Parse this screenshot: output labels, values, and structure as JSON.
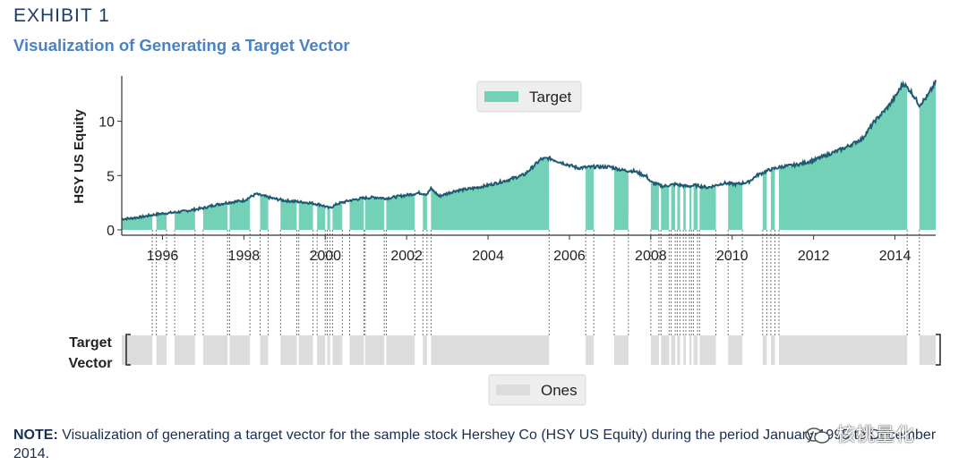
{
  "header": {
    "exhibit": "EXHIBIT 1",
    "subtitle": "Visualization of Generating a Target Vector"
  },
  "note": {
    "label": "NOTE:",
    "text": "Visualization of generating a target vector for the sample stock Hershey Co (HSY US Equity) during the period January 1995 to December 2014."
  },
  "watermark": {
    "text": "核桃量化",
    "icon": "wechat-icon"
  },
  "colors": {
    "target": "#72d1b6",
    "price_line": "#1f5a73",
    "ones": "#dcdcdc",
    "axis": "#333333"
  },
  "chart_data": {
    "type": "area",
    "ylabel": "HSY US Equity",
    "ylim": [
      0,
      14
    ],
    "yticks": [
      0,
      5,
      10
    ],
    "xlim": [
      1995.0,
      2015.0
    ],
    "xticks": [
      1996,
      1998,
      2000,
      2002,
      2004,
      2006,
      2008,
      2010,
      2012,
      2014
    ],
    "legend": {
      "label": "Target",
      "position": "top-center"
    },
    "price": {
      "x": [
        1995.0,
        1995.2,
        1995.5,
        1995.8,
        1996.0,
        1996.3,
        1996.6,
        1997.0,
        1997.3,
        1997.6,
        1998.0,
        1998.3,
        1998.5,
        1998.7,
        1999.0,
        1999.3,
        1999.6,
        1999.9,
        2000.1,
        2000.3,
        2000.6,
        2000.9,
        2001.2,
        2001.5,
        2002.0,
        2002.3,
        2002.5,
        2002.6,
        2002.8,
        2003.2,
        2003.6,
        2004.0,
        2004.5,
        2004.9,
        2005.1,
        2005.3,
        2005.5,
        2005.8,
        2006.2,
        2006.6,
        2007.0,
        2007.3,
        2007.6,
        2007.9,
        2008.0,
        2008.3,
        2008.6,
        2008.9,
        2009.1,
        2009.4,
        2009.8,
        2010.1,
        2010.4,
        2010.6,
        2010.9,
        2011.2,
        2011.6,
        2012.0,
        2012.4,
        2012.8,
        2013.2,
        2013.5,
        2013.8,
        2014.0,
        2014.2,
        2014.4,
        2014.6,
        2014.8,
        2015.0
      ],
      "y": [
        1.0,
        1.05,
        1.2,
        1.4,
        1.5,
        1.6,
        1.75,
        2.0,
        2.3,
        2.5,
        2.7,
        3.3,
        3.1,
        2.9,
        2.7,
        2.6,
        2.5,
        2.3,
        2.0,
        2.4,
        2.7,
        2.9,
        3.0,
        2.9,
        3.2,
        3.4,
        3.3,
        3.8,
        3.1,
        3.6,
        3.8,
        4.1,
        4.6,
        5.1,
        5.8,
        6.5,
        6.6,
        6.2,
        5.7,
        5.8,
        5.8,
        5.5,
        5.4,
        4.9,
        4.4,
        4.0,
        4.2,
        4.0,
        4.1,
        3.9,
        4.3,
        4.2,
        4.4,
        5.0,
        5.5,
        5.8,
        6.0,
        6.4,
        7.0,
        7.6,
        8.4,
        10.0,
        11.2,
        12.2,
        13.5,
        12.7,
        11.5,
        12.3,
        13.6
      ]
    },
    "target_periods": [
      [
        1995.0,
        1995.75
      ],
      [
        1995.85,
        1996.1
      ],
      [
        1996.3,
        1996.8
      ],
      [
        1997.0,
        1997.6
      ],
      [
        1997.65,
        1998.15
      ],
      [
        1998.4,
        1998.6
      ],
      [
        1998.9,
        1999.3
      ],
      [
        1999.35,
        1999.7
      ],
      [
        1999.8,
        2000.0
      ],
      [
        2000.05,
        2000.12
      ],
      [
        2000.18,
        2000.42
      ],
      [
        2000.6,
        2000.95
      ],
      [
        2000.98,
        2001.45
      ],
      [
        2001.5,
        2002.2
      ],
      [
        2002.4,
        2002.5
      ],
      [
        2002.6,
        2005.5
      ],
      [
        2006.4,
        2006.6
      ],
      [
        2007.1,
        2007.45
      ],
      [
        2008.0,
        2008.2
      ],
      [
        2008.25,
        2008.45
      ],
      [
        2008.5,
        2008.6
      ],
      [
        2008.65,
        2008.72
      ],
      [
        2008.8,
        2008.86
      ],
      [
        2008.95,
        2009.0
      ],
      [
        2009.05,
        2009.15
      ],
      [
        2009.2,
        2009.6
      ],
      [
        2009.9,
        2010.25
      ],
      [
        2010.75,
        2010.85
      ],
      [
        2010.95,
        2011.05
      ],
      [
        2011.15,
        2014.3
      ],
      [
        2014.6,
        2015.0
      ]
    ],
    "target_vector": {
      "ylabel": [
        "Target",
        "Vector"
      ],
      "legend": {
        "label": "Ones",
        "position": "bottom-center"
      }
    }
  }
}
